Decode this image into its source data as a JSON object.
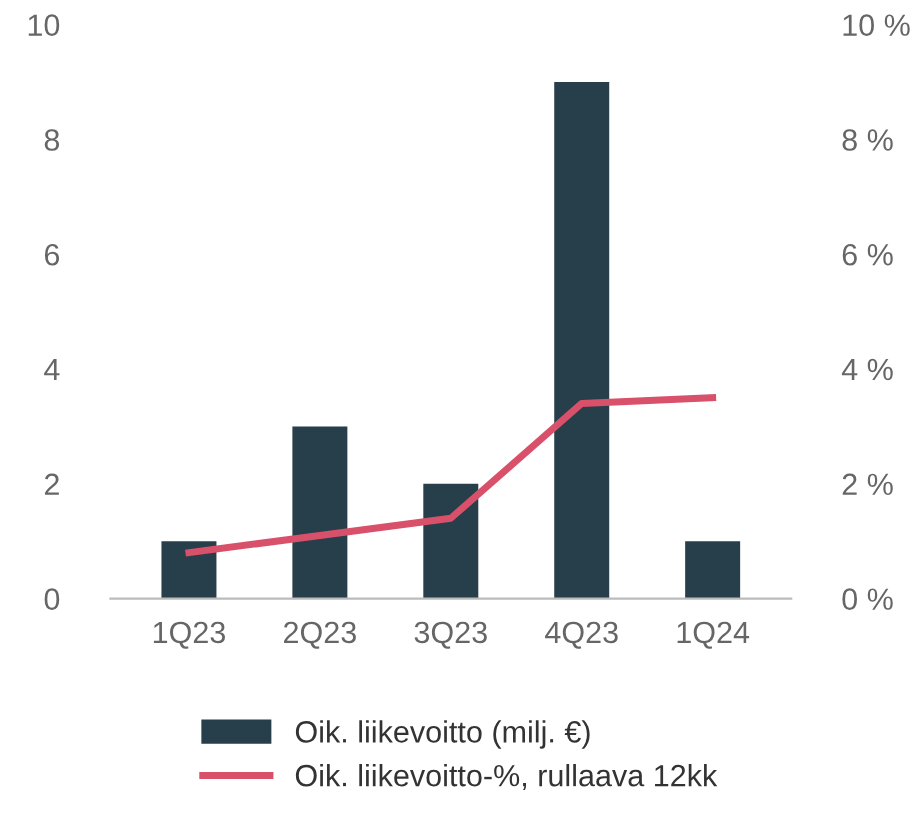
{
  "chart_data": {
    "type": "bar",
    "categories": [
      "1Q23",
      "2Q23",
      "3Q23",
      "4Q23",
      "1Q24"
    ],
    "series": [
      {
        "name": "Oik. liikevoitto (milj. €)",
        "color": "#263f4b",
        "values": [
          1,
          3,
          2,
          9,
          1
        ]
      },
      {
        "name": "Oik. liikevoitto-%, rullaava 12kk",
        "color": "#d9506a",
        "type": "line",
        "values": [
          0.8,
          1.1,
          1.4,
          3.4,
          3.5
        ]
      }
    ],
    "ylim": [
      0,
      10
    ],
    "yticks": [
      0,
      2,
      4,
      6,
      8,
      10
    ],
    "y2lim": [
      0,
      10
    ],
    "y2ticks": [
      {
        "value": 0,
        "label": "0 %"
      },
      {
        "value": 2,
        "label": "2 %"
      },
      {
        "value": 4,
        "label": "4 %"
      },
      {
        "value": 6,
        "label": "6 %"
      },
      {
        "value": 8,
        "label": "8 %"
      },
      {
        "value": 10,
        "label": "10 %"
      }
    ],
    "legend": "bottom",
    "grid": false,
    "marker": "none",
    "line_style": "solid"
  }
}
